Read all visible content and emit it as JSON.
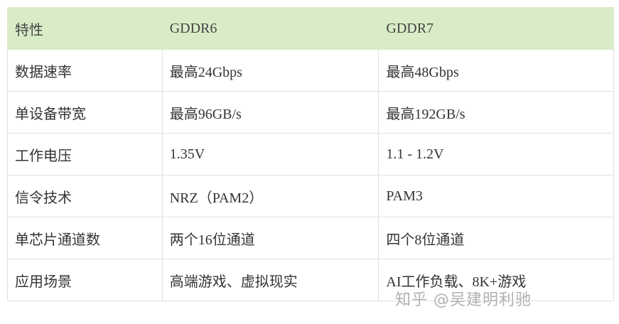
{
  "table": {
    "headers": [
      "特性",
      "GDDR6",
      "GDDR7"
    ],
    "rows": [
      [
        "数据速率",
        "最高24Gbps",
        "最高48Gbps"
      ],
      [
        "单设备带宽",
        "最高96GB/s",
        "最高192GB/s"
      ],
      [
        "工作电压",
        "1.35V",
        "1.1 - 1.2V"
      ],
      [
        "信令技术",
        "NRZ（PAM2）",
        "PAM3"
      ],
      [
        "单芯片通道数",
        "两个16位通道",
        "四个8位通道"
      ],
      [
        "应用场景",
        "高端游戏、虚拟现实",
        "AI工作负载、8K+游戏"
      ]
    ],
    "header_color": "#d9ecc8"
  },
  "watermark": "知乎 @吴建明利驰"
}
